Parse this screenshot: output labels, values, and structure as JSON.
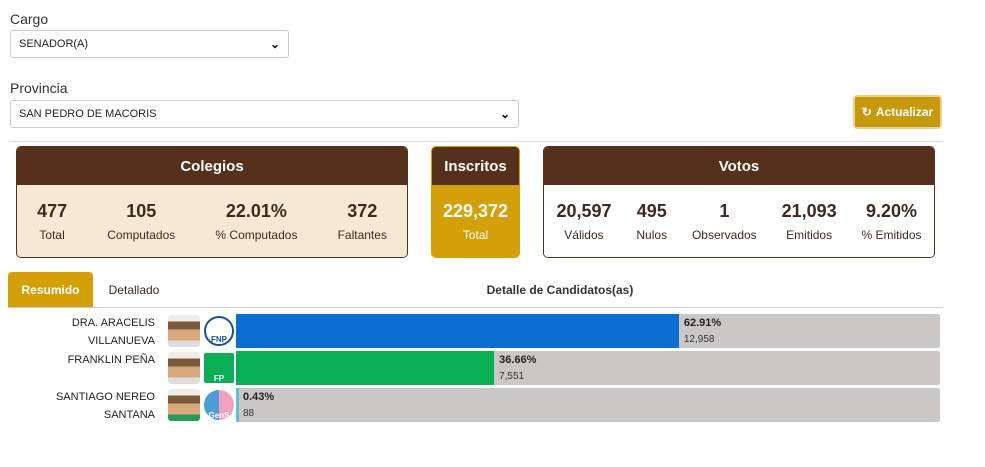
{
  "filters": {
    "cargo_label": "Cargo",
    "cargo_value": "SENADOR(A)",
    "provincia_label": "Provincia",
    "provincia_value": "SAN PEDRO DE MACORIS"
  },
  "refresh_label": "Actualizar",
  "colegios": {
    "title": "Colegios",
    "stats": [
      {
        "v": "477",
        "l": "Total"
      },
      {
        "v": "105",
        "l": "Computados"
      },
      {
        "v": "22.01%",
        "l": "% Computados"
      },
      {
        "v": "372",
        "l": "Faltantes"
      }
    ]
  },
  "inscritos": {
    "title": "Inscritos",
    "v": "229,372",
    "l": "Total"
  },
  "votos": {
    "title": "Votos",
    "stats": [
      {
        "v": "20,597",
        "l": "Válidos"
      },
      {
        "v": "495",
        "l": "Nulos"
      },
      {
        "v": "1",
        "l": "Observados"
      },
      {
        "v": "21,093",
        "l": "Emitidos"
      },
      {
        "v": "9.20%",
        "l": "% Emitidos"
      }
    ]
  },
  "tabs": [
    "Resumido",
    "Detallado"
  ],
  "detail_title": "Detalle de Candidatos(as)",
  "candidates": [
    {
      "name1": "DRA. ARACELIS",
      "name2": "VILLANUEVA",
      "pct": "62.91%",
      "percent": 62.91,
      "votes": "12,958",
      "color": "#0a6fd1",
      "logo": "FNP"
    },
    {
      "name1": "FRANKLIN PEÑA",
      "name2": "",
      "pct": "36.66%",
      "percent": 36.66,
      "votes": "7,551",
      "color": "#0aaf55",
      "logo": "FP"
    },
    {
      "name1": "SANTIAGO NEREO",
      "name2": "SANTANA",
      "pct": "0.43%",
      "percent": 0.43,
      "votes": "88",
      "color": "#5fc0d6",
      "logo": "GenS"
    }
  ]
}
